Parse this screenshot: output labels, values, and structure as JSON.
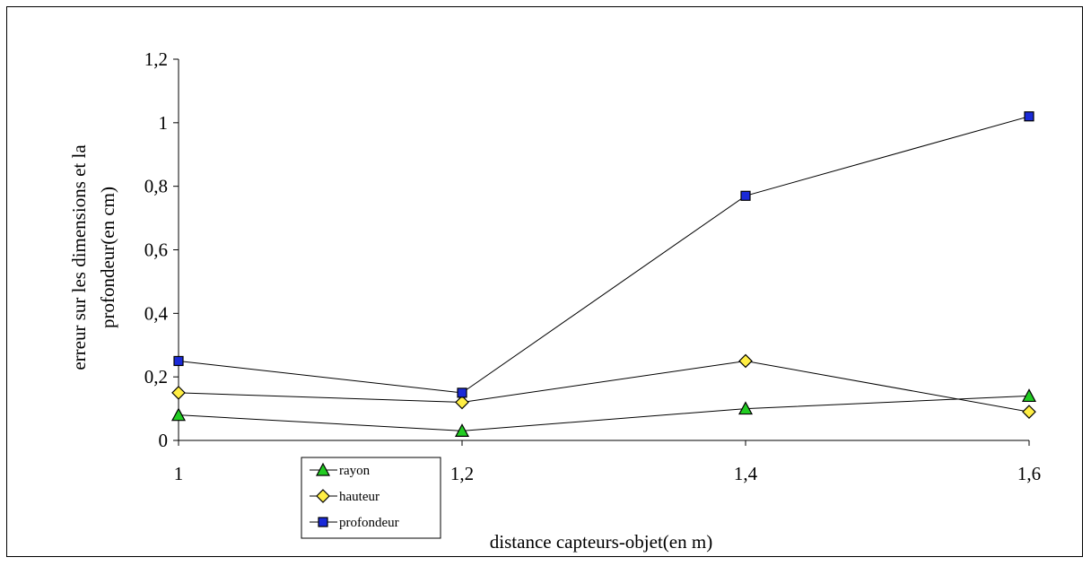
{
  "chart_data": {
    "type": "line",
    "x": [
      1,
      1.2,
      1.4,
      1.6
    ],
    "x_tick_labels": [
      "1",
      "1,2",
      "1,4",
      "1,6"
    ],
    "y_tick_labels": [
      "0",
      "0,2",
      "0,4",
      "0,6",
      "0,8",
      "1",
      "1,2"
    ],
    "y_ticks": [
      0,
      0.2,
      0.4,
      0.6,
      0.8,
      1,
      1.2
    ],
    "xlim": [
      1,
      1.6
    ],
    "ylim": [
      0,
      1.2
    ],
    "xlabel": "distance capteurs-objet(en m)",
    "ylabel_lines": [
      "erreur sur les dimensions et la",
      "profondeur(en cm)"
    ],
    "legend_position": "bottom-left",
    "grid": false,
    "series": [
      {
        "name": "rayon",
        "values": [
          0.08,
          0.03,
          0.1,
          0.14
        ],
        "marker": "triangle",
        "color": "#22cc22"
      },
      {
        "name": "hauteur",
        "values": [
          0.15,
          0.12,
          0.25,
          0.09
        ],
        "marker": "diamond",
        "color": "#ffee44"
      },
      {
        "name": "profondeur",
        "values": [
          0.25,
          0.15,
          0.77,
          1.02
        ],
        "marker": "square",
        "color": "#1a2ad8"
      }
    ]
  }
}
